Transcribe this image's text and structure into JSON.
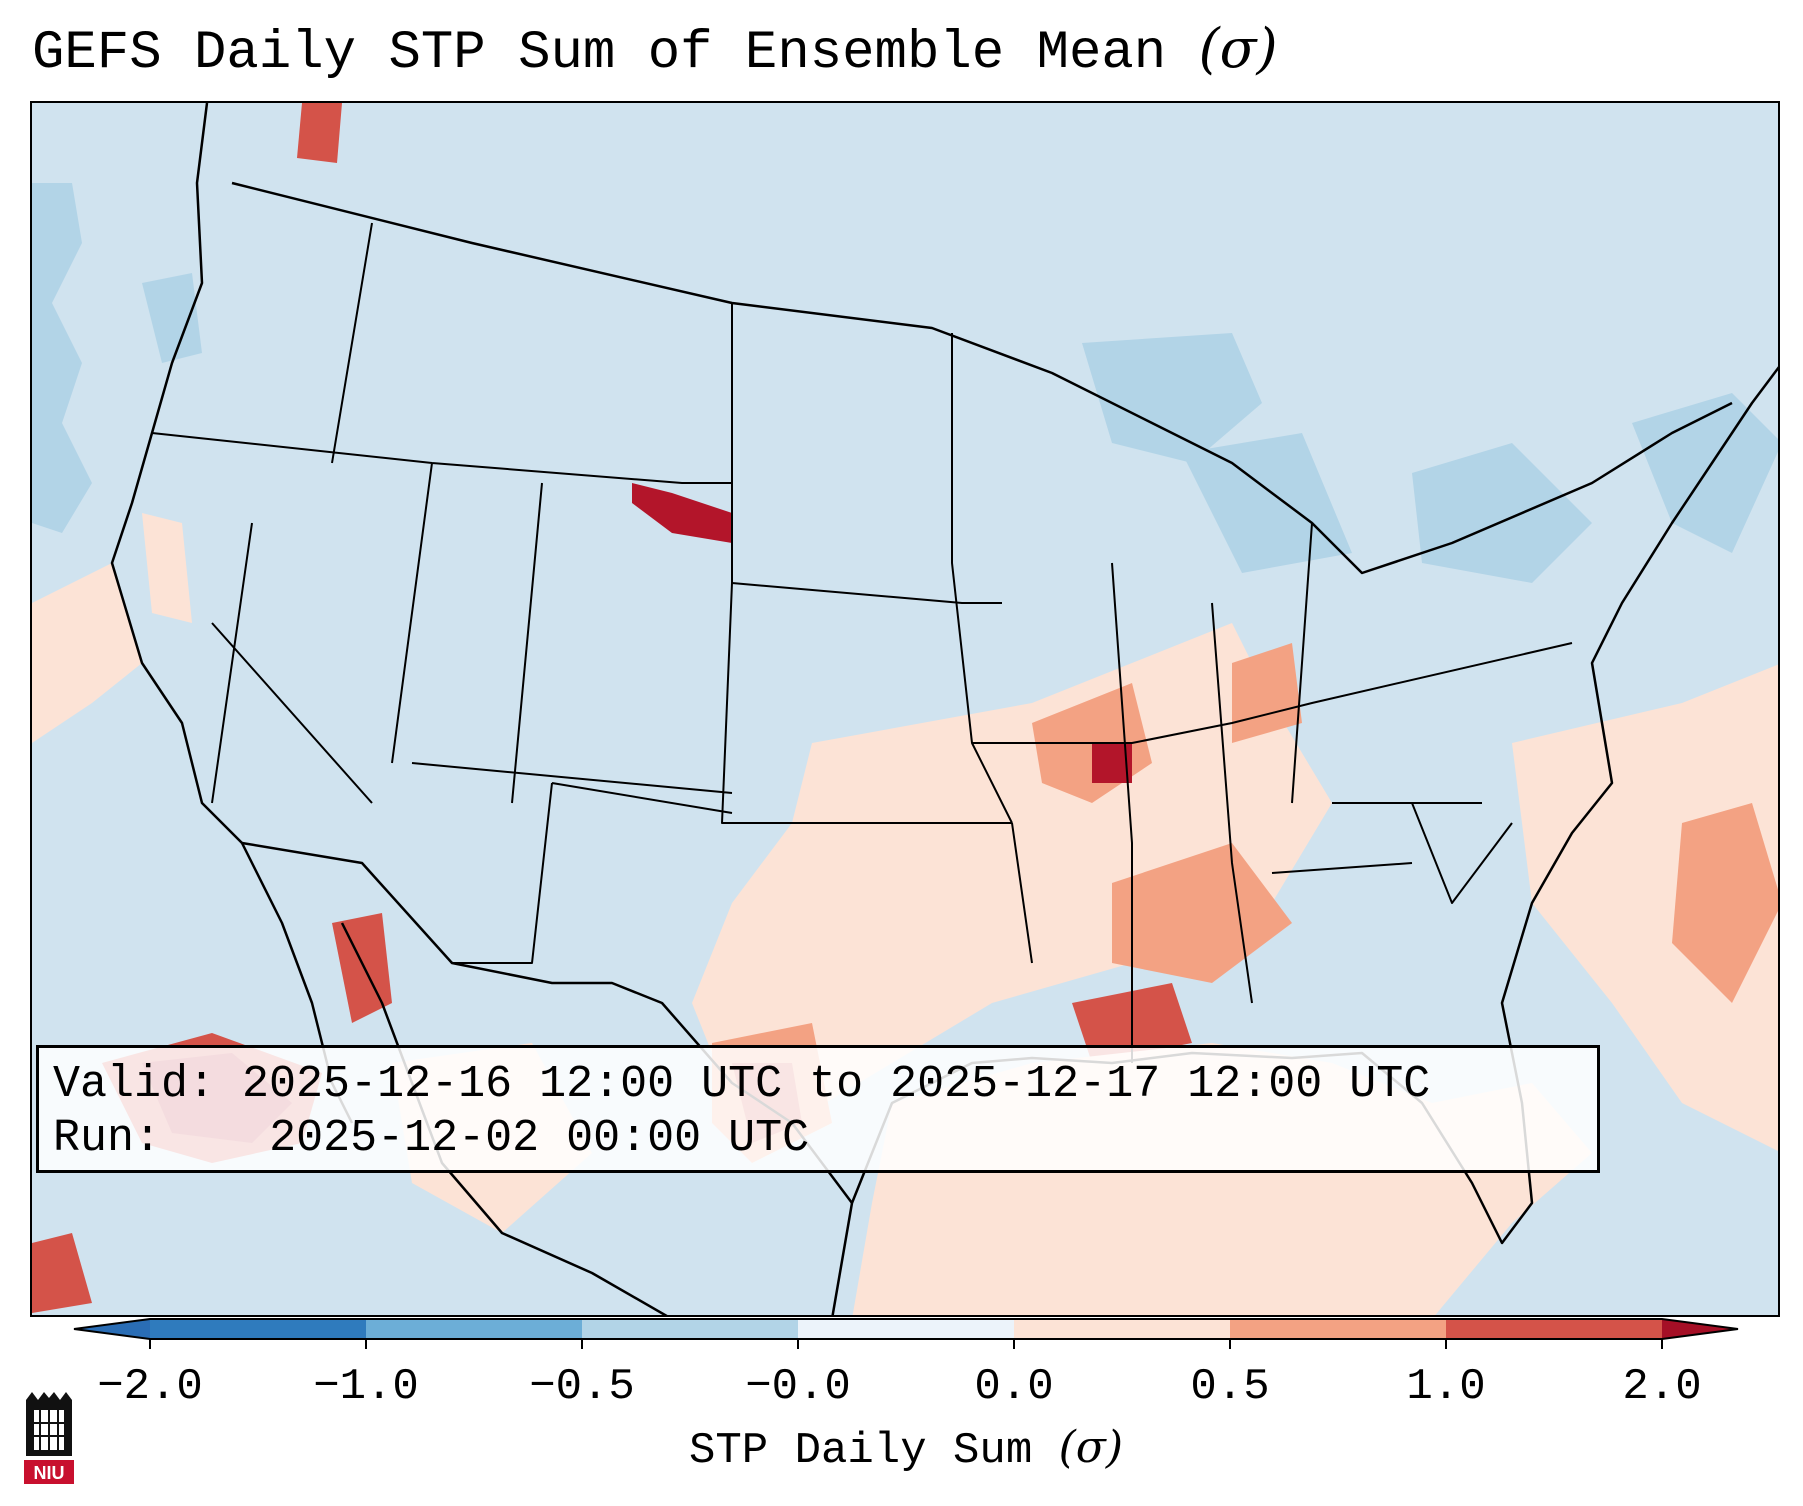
{
  "title": {
    "text": "GEFS Daily STP Sum of Ensemble Mean",
    "unit": "(σ)"
  },
  "info": {
    "valid_label": "Valid:",
    "valid_value": "2025-12-16 12:00 UTC to 2025-12-17 12:00 UTC",
    "run_label": "Run:",
    "run_value": "2025-12-02 00:00 UTC"
  },
  "colorbar": {
    "label_text": "STP Daily Sum",
    "label_unit": "(σ)",
    "tick_labels": [
      "−2.0",
      "−1.0",
      "−0.5",
      "−0.0",
      "0.0",
      "0.5",
      "1.0",
      "2.0"
    ],
    "colors": [
      "#2f7bbd",
      "#6caed7",
      "#b2d4e7",
      "#ecf3fa",
      "#fce3d6",
      "#f3a283",
      "#d45349",
      "#b3152a"
    ],
    "under_color": "#2a6db5",
    "over_color": "#a50f26"
  },
  "map": {
    "background_color": "#d0e3ef",
    "border_color": "#000000"
  },
  "logo": {
    "text": "NIU",
    "color": "#c8102e"
  }
}
